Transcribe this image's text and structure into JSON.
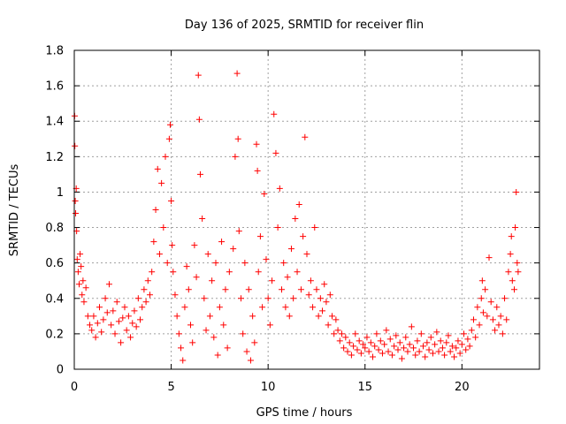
{
  "chart_data": {
    "type": "scatter",
    "title": "Day 136 of 2025, SRMTID for receiver flin",
    "xlabel": "GPS time / hours",
    "ylabel": "SRMTID / TECUs",
    "xlim": [
      0,
      24
    ],
    "ylim": [
      0,
      1.8
    ],
    "xticks": [
      0,
      5,
      10,
      15,
      20
    ],
    "xtick_labels": [
      "0",
      "5",
      "10",
      "15",
      "20"
    ],
    "yticks": [
      0,
      0.2,
      0.4,
      0.6,
      0.8,
      1.0,
      1.2,
      1.4,
      1.6,
      1.8
    ],
    "ytick_labels": [
      "0",
      "0.2",
      "0.4",
      "0.6",
      "0.8",
      "1",
      "1.2",
      "1.4",
      "1.6",
      "1.8"
    ],
    "grid": true,
    "marker": "+",
    "series": [
      {
        "name": "SRMTID",
        "color": "#ff0000",
        "points": [
          [
            0.02,
            1.43
          ],
          [
            0.03,
            1.26
          ],
          [
            0.05,
            0.95
          ],
          [
            0.07,
            0.88
          ],
          [
            0.1,
            1.02
          ],
          [
            0.12,
            0.78
          ],
          [
            0.15,
            0.62
          ],
          [
            0.2,
            0.55
          ],
          [
            0.25,
            0.48
          ],
          [
            0.3,
            0.65
          ],
          [
            0.35,
            0.58
          ],
          [
            0.4,
            0.42
          ],
          [
            0.45,
            0.5
          ],
          [
            0.5,
            0.38
          ],
          [
            0.6,
            0.46
          ],
          [
            0.7,
            0.3
          ],
          [
            0.8,
            0.25
          ],
          [
            0.9,
            0.22
          ],
          [
            1.0,
            0.3
          ],
          [
            1.1,
            0.18
          ],
          [
            1.2,
            0.26
          ],
          [
            1.3,
            0.35
          ],
          [
            1.4,
            0.21
          ],
          [
            1.5,
            0.28
          ],
          [
            1.6,
            0.4
          ],
          [
            1.7,
            0.32
          ],
          [
            1.8,
            0.48
          ],
          [
            1.9,
            0.25
          ],
          [
            2.0,
            0.33
          ],
          [
            2.1,
            0.2
          ],
          [
            2.2,
            0.38
          ],
          [
            2.3,
            0.27
          ],
          [
            2.4,
            0.15
          ],
          [
            2.5,
            0.29
          ],
          [
            2.6,
            0.35
          ],
          [
            2.7,
            0.22
          ],
          [
            2.8,
            0.3
          ],
          [
            2.9,
            0.18
          ],
          [
            3.0,
            0.26
          ],
          [
            3.1,
            0.33
          ],
          [
            3.2,
            0.24
          ],
          [
            3.3,
            0.4
          ],
          [
            3.4,
            0.28
          ],
          [
            3.5,
            0.35
          ],
          [
            3.6,
            0.45
          ],
          [
            3.7,
            0.38
          ],
          [
            3.8,
            0.5
          ],
          [
            3.9,
            0.42
          ],
          [
            4.0,
            0.55
          ],
          [
            4.1,
            0.72
          ],
          [
            4.2,
            0.9
          ],
          [
            4.3,
            1.13
          ],
          [
            4.4,
            0.65
          ],
          [
            4.5,
            1.05
          ],
          [
            4.6,
            0.8
          ],
          [
            4.7,
            1.2
          ],
          [
            4.8,
            0.6
          ],
          [
            4.9,
            1.3
          ],
          [
            4.95,
            1.38
          ],
          [
            5.0,
            0.95
          ],
          [
            5.05,
            0.7
          ],
          [
            5.1,
            0.55
          ],
          [
            5.2,
            0.42
          ],
          [
            5.3,
            0.3
          ],
          [
            5.4,
            0.2
          ],
          [
            5.5,
            0.12
          ],
          [
            5.6,
            0.05
          ],
          [
            5.7,
            0.35
          ],
          [
            5.8,
            0.58
          ],
          [
            5.9,
            0.45
          ],
          [
            6.0,
            0.25
          ],
          [
            6.1,
            0.15
          ],
          [
            6.2,
            0.7
          ],
          [
            6.3,
            0.52
          ],
          [
            6.4,
            1.66
          ],
          [
            6.45,
            1.41
          ],
          [
            6.5,
            1.1
          ],
          [
            6.6,
            0.85
          ],
          [
            6.7,
            0.4
          ],
          [
            6.8,
            0.22
          ],
          [
            6.9,
            0.65
          ],
          [
            7.0,
            0.3
          ],
          [
            7.1,
            0.5
          ],
          [
            7.2,
            0.18
          ],
          [
            7.3,
            0.6
          ],
          [
            7.4,
            0.08
          ],
          [
            7.5,
            0.35
          ],
          [
            7.6,
            0.72
          ],
          [
            7.7,
            0.25
          ],
          [
            7.8,
            0.45
          ],
          [
            7.9,
            0.12
          ],
          [
            8.0,
            0.55
          ],
          [
            8.2,
            0.68
          ],
          [
            8.3,
            1.2
          ],
          [
            8.4,
            1.67
          ],
          [
            8.45,
            1.3
          ],
          [
            8.5,
            0.78
          ],
          [
            8.6,
            0.4
          ],
          [
            8.7,
            0.2
          ],
          [
            8.8,
            0.6
          ],
          [
            8.9,
            0.1
          ],
          [
            9.0,
            0.45
          ],
          [
            9.1,
            0.05
          ],
          [
            9.2,
            0.3
          ],
          [
            9.3,
            0.15
          ],
          [
            9.4,
            1.27
          ],
          [
            9.45,
            1.12
          ],
          [
            9.5,
            0.55
          ],
          [
            9.6,
            0.75
          ],
          [
            9.7,
            0.35
          ],
          [
            9.8,
            0.99
          ],
          [
            9.9,
            0.62
          ],
          [
            10.0,
            0.4
          ],
          [
            10.1,
            0.25
          ],
          [
            10.2,
            0.5
          ],
          [
            10.3,
            1.44
          ],
          [
            10.4,
            1.22
          ],
          [
            10.5,
            0.8
          ],
          [
            10.6,
            1.02
          ],
          [
            10.7,
            0.45
          ],
          [
            10.8,
            0.6
          ],
          [
            10.9,
            0.35
          ],
          [
            11.0,
            0.52
          ],
          [
            11.1,
            0.3
          ],
          [
            11.2,
            0.68
          ],
          [
            11.3,
            0.4
          ],
          [
            11.4,
            0.85
          ],
          [
            11.5,
            0.55
          ],
          [
            11.6,
            0.93
          ],
          [
            11.7,
            0.45
          ],
          [
            11.8,
            0.75
          ],
          [
            11.9,
            1.31
          ],
          [
            12.0,
            0.65
          ],
          [
            12.1,
            0.42
          ],
          [
            12.2,
            0.5
          ],
          [
            12.3,
            0.35
          ],
          [
            12.4,
            0.8
          ],
          [
            12.5,
            0.45
          ],
          [
            12.6,
            0.3
          ],
          [
            12.7,
            0.4
          ],
          [
            12.8,
            0.33
          ],
          [
            12.9,
            0.48
          ],
          [
            13.0,
            0.38
          ],
          [
            13.1,
            0.25
          ],
          [
            13.2,
            0.42
          ],
          [
            13.3,
            0.3
          ],
          [
            13.4,
            0.2
          ],
          [
            13.5,
            0.28
          ],
          [
            13.6,
            0.22
          ],
          [
            13.7,
            0.16
          ],
          [
            13.8,
            0.2
          ],
          [
            13.9,
            0.12
          ],
          [
            14.0,
            0.18
          ],
          [
            14.1,
            0.1
          ],
          [
            14.2,
            0.15
          ],
          [
            14.3,
            0.08
          ],
          [
            14.4,
            0.13
          ],
          [
            14.5,
            0.2
          ],
          [
            14.6,
            0.11
          ],
          [
            14.7,
            0.16
          ],
          [
            14.8,
            0.09
          ],
          [
            14.9,
            0.14
          ],
          [
            15.0,
            0.12
          ],
          [
            15.1,
            0.18
          ],
          [
            15.2,
            0.1
          ],
          [
            15.3,
            0.15
          ],
          [
            15.4,
            0.07
          ],
          [
            15.5,
            0.13
          ],
          [
            15.6,
            0.2
          ],
          [
            15.7,
            0.11
          ],
          [
            15.8,
            0.16
          ],
          [
            15.9,
            0.09
          ],
          [
            16.0,
            0.14
          ],
          [
            16.1,
            0.22
          ],
          [
            16.2,
            0.1
          ],
          [
            16.3,
            0.17
          ],
          [
            16.4,
            0.08
          ],
          [
            16.5,
            0.13
          ],
          [
            16.6,
            0.19
          ],
          [
            16.7,
            0.11
          ],
          [
            16.8,
            0.15
          ],
          [
            16.9,
            0.06
          ],
          [
            17.0,
            0.12
          ],
          [
            17.1,
            0.18
          ],
          [
            17.2,
            0.1
          ],
          [
            17.3,
            0.14
          ],
          [
            17.4,
            0.24
          ],
          [
            17.5,
            0.12
          ],
          [
            17.6,
            0.08
          ],
          [
            17.7,
            0.16
          ],
          [
            17.8,
            0.1
          ],
          [
            17.9,
            0.2
          ],
          [
            18.0,
            0.13
          ],
          [
            18.1,
            0.07
          ],
          [
            18.2,
            0.15
          ],
          [
            18.3,
            0.11
          ],
          [
            18.4,
            0.18
          ],
          [
            18.5,
            0.09
          ],
          [
            18.6,
            0.14
          ],
          [
            18.7,
            0.21
          ],
          [
            18.8,
            0.1
          ],
          [
            18.9,
            0.16
          ],
          [
            19.0,
            0.12
          ],
          [
            19.1,
            0.08
          ],
          [
            19.2,
            0.15
          ],
          [
            19.3,
            0.19
          ],
          [
            19.4,
            0.1
          ],
          [
            19.5,
            0.13
          ],
          [
            19.6,
            0.07
          ],
          [
            19.7,
            0.12
          ],
          [
            19.8,
            0.16
          ],
          [
            19.9,
            0.09
          ],
          [
            20.0,
            0.14
          ],
          [
            20.1,
            0.2
          ],
          [
            20.2,
            0.11
          ],
          [
            20.3,
            0.17
          ],
          [
            20.4,
            0.13
          ],
          [
            20.5,
            0.22
          ],
          [
            20.6,
            0.28
          ],
          [
            20.7,
            0.18
          ],
          [
            20.8,
            0.35
          ],
          [
            20.9,
            0.25
          ],
          [
            21.0,
            0.4
          ],
          [
            21.05,
            0.5
          ],
          [
            21.1,
            0.32
          ],
          [
            21.2,
            0.45
          ],
          [
            21.3,
            0.3
          ],
          [
            21.4,
            0.63
          ],
          [
            21.5,
            0.38
          ],
          [
            21.6,
            0.28
          ],
          [
            21.7,
            0.22
          ],
          [
            21.8,
            0.35
          ],
          [
            21.9,
            0.25
          ],
          [
            22.0,
            0.3
          ],
          [
            22.1,
            0.2
          ],
          [
            22.2,
            0.4
          ],
          [
            22.3,
            0.28
          ],
          [
            22.4,
            0.55
          ],
          [
            22.5,
            0.65
          ],
          [
            22.55,
            0.75
          ],
          [
            22.6,
            0.5
          ],
          [
            22.7,
            0.45
          ],
          [
            22.75,
            0.8
          ],
          [
            22.8,
            1.0
          ],
          [
            22.85,
            0.6
          ],
          [
            22.9,
            0.55
          ]
        ]
      }
    ]
  }
}
